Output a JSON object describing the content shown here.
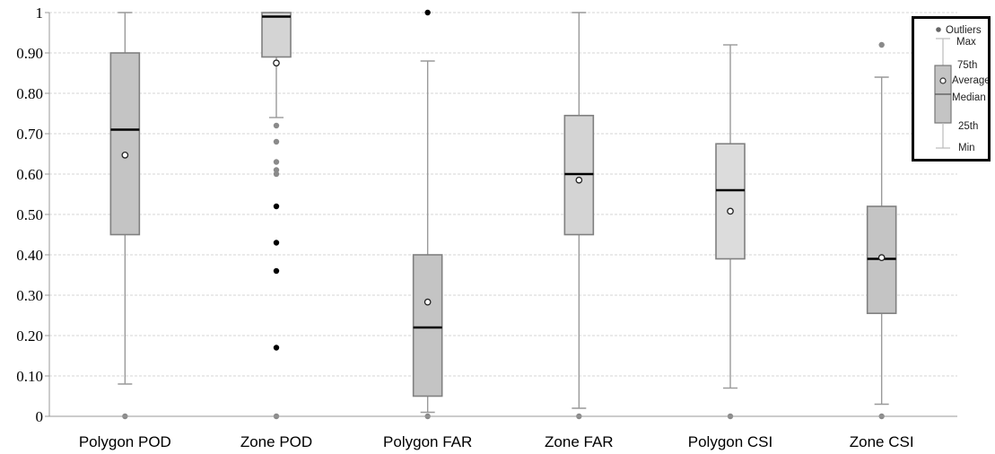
{
  "chart_data": {
    "type": "boxplot",
    "ylim": [
      0,
      1
    ],
    "y_ticks": [
      "0",
      "0.10",
      "0.20",
      "0.30",
      "0.40",
      "0.50",
      "0.60",
      "0.70",
      "0.80",
      "0.90",
      "1"
    ],
    "grid": true,
    "legend_position": "top-right",
    "categories": [
      "Polygon POD",
      "Zone POD",
      "Polygon FAR",
      "Zone FAR",
      "Polygon CSI",
      "Zone CSI"
    ],
    "boxes": [
      {
        "name": "Polygon POD",
        "min": 0.08,
        "q1": 0.45,
        "median": 0.71,
        "q3": 0.9,
        "max": 1.0,
        "mean": 0.647,
        "fill": "#c4c4c4",
        "outliers": [
          0
        ]
      },
      {
        "name": "Zone POD",
        "min": 0.74,
        "q1": 0.89,
        "median": 0.99,
        "q3": 1.0,
        "max": 1.0,
        "mean": 0.875,
        "fill": "#d4d4d4",
        "outliers": [
          0.72,
          0.68,
          0.63,
          0.61,
          0.6,
          0.52,
          0.43,
          0.36,
          0.17,
          0
        ]
      },
      {
        "name": "Polygon FAR",
        "min": 0.01,
        "q1": 0.05,
        "median": 0.22,
        "q3": 0.4,
        "max": 0.88,
        "mean": 0.283,
        "fill": "#c4c4c4",
        "outliers": [
          1.0,
          0
        ]
      },
      {
        "name": "Zone FAR",
        "min": 0.02,
        "q1": 0.45,
        "median": 0.6,
        "q3": 0.745,
        "max": 1.0,
        "mean": 0.585,
        "fill": "#d4d4d4",
        "outliers": [
          0
        ]
      },
      {
        "name": "Polygon CSI",
        "min": 0.07,
        "q1": 0.39,
        "median": 0.56,
        "q3": 0.675,
        "max": 0.92,
        "mean": 0.508,
        "fill": "#dcdcdc",
        "outliers": [
          0
        ]
      },
      {
        "name": "Zone CSI",
        "min": 0.03,
        "q1": 0.255,
        "median": 0.39,
        "q3": 0.52,
        "max": 0.84,
        "mean": 0.393,
        "fill": "#c4c4c4",
        "outliers": [
          0.92,
          0
        ]
      }
    ],
    "legend": {
      "outliers": "Outliers",
      "max": "Max",
      "q3": "75th",
      "average": "Average",
      "median": "Median",
      "q1": "25th",
      "min": "Min"
    }
  }
}
